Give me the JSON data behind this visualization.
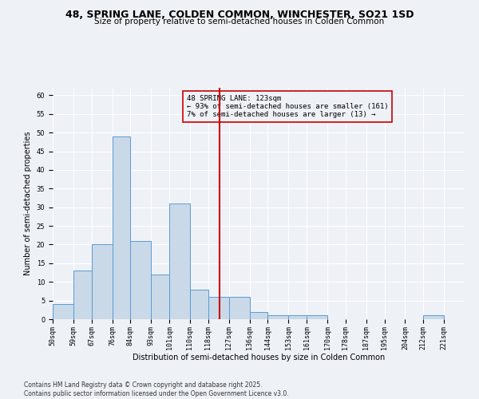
{
  "title": "48, SPRING LANE, COLDEN COMMON, WINCHESTER, SO21 1SD",
  "subtitle": "Size of property relative to semi-detached houses in Colden Common",
  "xlabel": "Distribution of semi-detached houses by size in Colden Common",
  "ylabel": "Number of semi-detached properties",
  "footnote1": "Contains HM Land Registry data © Crown copyright and database right 2025.",
  "footnote2": "Contains public sector information licensed under the Open Government Licence v3.0.",
  "bin_labels": [
    "50sqm",
    "59sqm",
    "67sqm",
    "76sqm",
    "84sqm",
    "93sqm",
    "101sqm",
    "110sqm",
    "118sqm",
    "127sqm",
    "136sqm",
    "144sqm",
    "153sqm",
    "161sqm",
    "170sqm",
    "178sqm",
    "187sqm",
    "195sqm",
    "204sqm",
    "212sqm",
    "221sqm"
  ],
  "bin_edges": [
    50,
    59,
    67,
    76,
    84,
    93,
    101,
    110,
    118,
    127,
    136,
    144,
    153,
    161,
    170,
    178,
    187,
    195,
    204,
    212,
    221,
    230
  ],
  "counts": [
    4,
    13,
    20,
    49,
    21,
    12,
    31,
    8,
    6,
    6,
    2,
    1,
    1,
    1,
    0,
    0,
    0,
    0,
    0,
    1,
    0
  ],
  "bar_color": "#c9d9e8",
  "bar_edge_color": "#5b9bd5",
  "vline_x": 123,
  "vline_color": "#cc0000",
  "annotation_title": "48 SPRING LANE: 123sqm",
  "annotation_line1": "← 93% of semi-detached houses are smaller (161)",
  "annotation_line2": "7% of semi-detached houses are larger (13) →",
  "annotation_box_color": "#cc0000",
  "ylim": [
    0,
    62
  ],
  "yticks": [
    0,
    5,
    10,
    15,
    20,
    25,
    30,
    35,
    40,
    45,
    50,
    55,
    60
  ],
  "title_fontsize": 9,
  "subtitle_fontsize": 7.5,
  "axis_label_fontsize": 7,
  "tick_fontsize": 6,
  "annotation_fontsize": 6.5,
  "footnote_fontsize": 5.5,
  "background_color": "#eef2f7",
  "grid_color": "#ffffff"
}
